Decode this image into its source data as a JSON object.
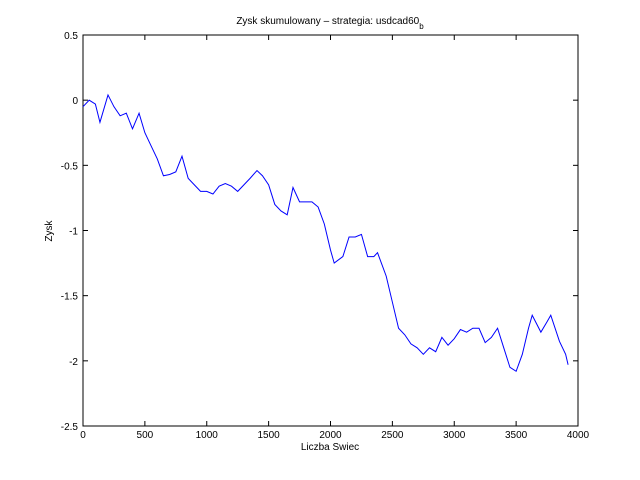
{
  "chart_data": {
    "type": "line",
    "title": "Zysk skumulowany – strategia: usdcad60",
    "title_subscript": "b",
    "x_label": "Liczba Swiec",
    "y_label": "Zysk",
    "x": [
      0,
      50,
      100,
      137,
      202,
      250,
      300,
      350,
      400,
      453,
      500,
      550,
      600,
      650,
      700,
      750,
      800,
      850,
      900,
      950,
      1000,
      1050,
      1100,
      1150,
      1200,
      1250,
      1300,
      1350,
      1406,
      1450,
      1500,
      1550,
      1600,
      1650,
      1697,
      1750,
      1800,
      1850,
      1900,
      1950,
      2000,
      2030,
      2100,
      2150,
      2200,
      2250,
      2300,
      2350,
      2380,
      2450,
      2500,
      2550,
      2600,
      2650,
      2700,
      2750,
      2800,
      2850,
      2900,
      2950,
      3000,
      3050,
      3100,
      3150,
      3200,
      3250,
      3300,
      3350,
      3400,
      3450,
      3500,
      3550,
      3600,
      3630,
      3700,
      3750,
      3780,
      3850,
      3900,
      3920
    ],
    "series": [
      {
        "name": "zysk",
        "color": "#0000ff",
        "values": [
          -0.05,
          0.0,
          -0.03,
          -0.17,
          0.04,
          -0.05,
          -0.12,
          -0.1,
          -0.22,
          -0.1,
          -0.25,
          -0.35,
          -0.45,
          -0.58,
          -0.57,
          -0.55,
          -0.43,
          -0.6,
          -0.65,
          -0.7,
          -0.7,
          -0.72,
          -0.66,
          -0.64,
          -0.66,
          -0.7,
          -0.65,
          -0.6,
          -0.54,
          -0.58,
          -0.65,
          -0.8,
          -0.85,
          -0.88,
          -0.67,
          -0.78,
          -0.78,
          -0.78,
          -0.82,
          -0.95,
          -1.15,
          -1.25,
          -1.2,
          -1.05,
          -1.05,
          -1.03,
          -1.2,
          -1.2,
          -1.17,
          -1.35,
          -1.55,
          -1.75,
          -1.8,
          -1.87,
          -1.9,
          -1.95,
          -1.9,
          -1.93,
          -1.82,
          -1.88,
          -1.83,
          -1.76,
          -1.78,
          -1.75,
          -1.75,
          -1.86,
          -1.82,
          -1.75,
          -1.9,
          -2.05,
          -2.08,
          -1.95,
          -1.75,
          -1.65,
          -1.78,
          -1.7,
          -1.65,
          -1.85,
          -1.95,
          -2.03
        ]
      }
    ],
    "xlim": [
      0,
      4000
    ],
    "xticks": [
      0,
      500,
      1000,
      1500,
      2000,
      2500,
      3000,
      3500,
      4000
    ],
    "ylim": [
      -2.5,
      0.5
    ],
    "yticks": [
      0.5,
      0,
      -0.5,
      -1,
      -1.5,
      -2,
      -2.5
    ]
  }
}
